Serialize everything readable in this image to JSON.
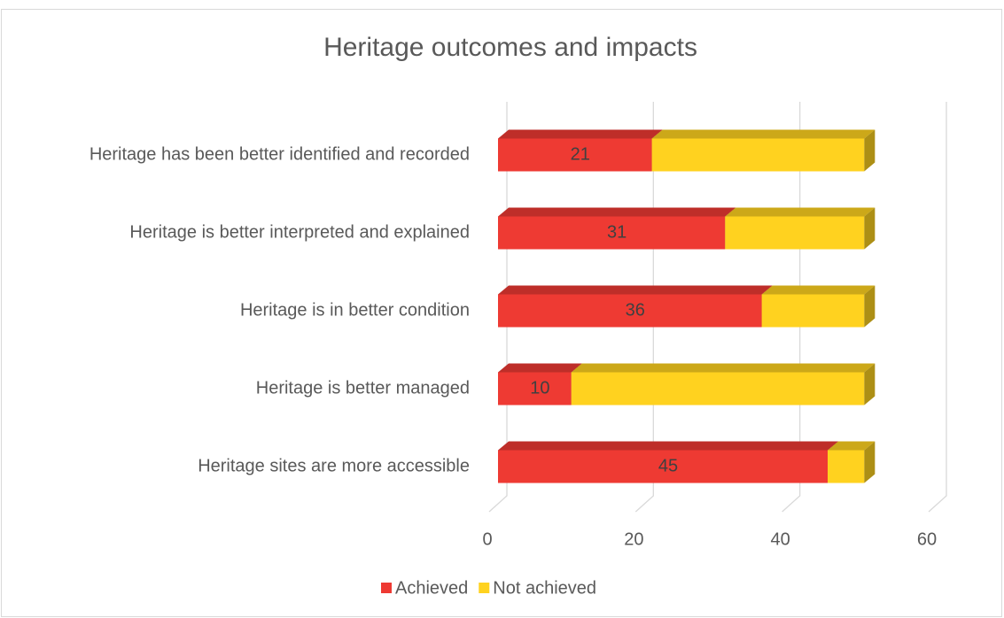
{
  "chart_data": {
    "type": "bar",
    "orientation": "horizontal",
    "stacked": true,
    "three_d": true,
    "title": "Heritage outcomes and impacts",
    "categories": [
      "Heritage has been better identified and recorded",
      "Heritage is better interpreted and explained",
      "Heritage is in better condition",
      "Heritage is better managed",
      "Heritage sites are more accessible"
    ],
    "series": [
      {
        "name": "Achieved",
        "color": "#ee3a33",
        "values": [
          21,
          31,
          36,
          10,
          45
        ]
      },
      {
        "name": "Not achieved",
        "color": "#ffd21f",
        "values": [
          29,
          19,
          14,
          40,
          5
        ]
      }
    ],
    "xlim": [
      0,
      60
    ],
    "xticks": [
      0,
      20,
      40,
      60
    ],
    "grid": true,
    "legend": "bottom"
  }
}
